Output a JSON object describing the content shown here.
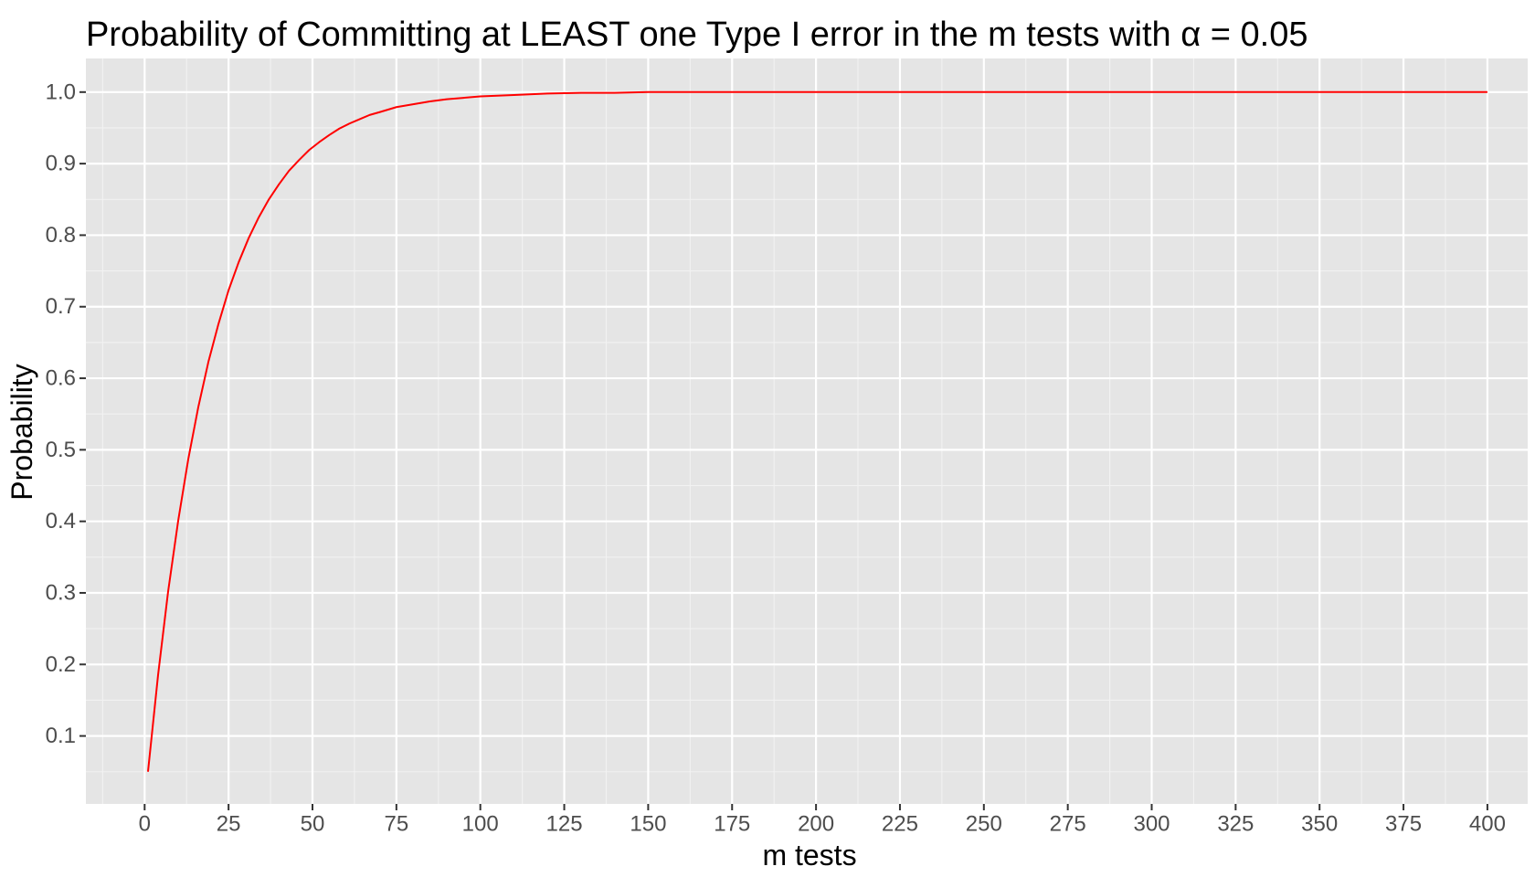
{
  "chart_data": {
    "type": "line",
    "title": "Probability of Committing at LEAST one Type I error in the m tests with α = 0.05",
    "xlabel": "m tests",
    "ylabel": "Probability",
    "xlim": [
      -17.5,
      412
    ],
    "ylim": [
      0.005,
      1.047
    ],
    "x_ticks": [
      0,
      25,
      50,
      75,
      100,
      125,
      150,
      175,
      200,
      225,
      250,
      275,
      300,
      325,
      350,
      375,
      400
    ],
    "x_tick_labels": [
      "0",
      "25",
      "50",
      "75",
      "100",
      "125",
      "150",
      "175",
      "200",
      "225",
      "250",
      "275",
      "300",
      "325",
      "350",
      "375",
      "400"
    ],
    "y_ticks": [
      0.1,
      0.2,
      0.3,
      0.4,
      0.5,
      0.6,
      0.7,
      0.8,
      0.9,
      1.0
    ],
    "y_tick_labels": [
      "0.1",
      "0.2",
      "0.3",
      "0.4",
      "0.5",
      "0.6",
      "0.7",
      "0.8",
      "0.9",
      "1.0"
    ],
    "grid": true,
    "background": "#e5e5e5",
    "series": [
      {
        "color": "#ff0000",
        "x": [
          1,
          4,
          7,
          10,
          13,
          16,
          19,
          22,
          25,
          28,
          31,
          34,
          37,
          40,
          43,
          46,
          49,
          52,
          55,
          58,
          61,
          64,
          67,
          70,
          75,
          80,
          85,
          90,
          95,
          100,
          110,
          120,
          130,
          140,
          150,
          175,
          200,
          250,
          300,
          350,
          400
        ],
        "y": [
          0.05,
          0.185,
          0.302,
          0.401,
          0.487,
          0.56,
          0.623,
          0.676,
          0.723,
          0.762,
          0.796,
          0.825,
          0.85,
          0.871,
          0.89,
          0.905,
          0.919,
          0.93,
          0.94,
          0.949,
          0.956,
          0.962,
          0.968,
          0.972,
          0.979,
          0.983,
          0.987,
          0.99,
          0.992,
          0.994,
          0.996,
          0.998,
          0.999,
          0.999,
          1.0,
          1.0,
          1.0,
          1.0,
          1.0,
          1.0,
          1.0
        ]
      }
    ]
  }
}
